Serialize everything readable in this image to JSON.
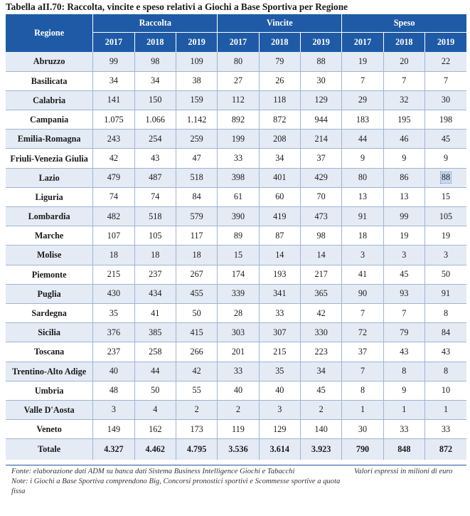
{
  "caption": "Tabella aII.70: Raccolta, vincite e speso relativi a Giochi a Base Sportiva per Regione",
  "headers": {
    "regione": "Regione",
    "groups": [
      "Raccolta",
      "Vincite",
      "Speso"
    ],
    "years": [
      "2017",
      "2018",
      "2019",
      "2017",
      "2018",
      "2019",
      "2017",
      "2018",
      "2019"
    ]
  },
  "rows": [
    {
      "regione": "Abruzzo",
      "values": [
        "99",
        "98",
        "109",
        "80",
        "79",
        "88",
        "19",
        "20",
        "22"
      ]
    },
    {
      "regione": "Basilicata",
      "values": [
        "34",
        "34",
        "38",
        "27",
        "26",
        "30",
        "7",
        "7",
        "7"
      ]
    },
    {
      "regione": "Calabria",
      "values": [
        "141",
        "150",
        "159",
        "112",
        "118",
        "129",
        "29",
        "32",
        "30"
      ]
    },
    {
      "regione": "Campania",
      "values": [
        "1.075",
        "1.066",
        "1.142",
        "892",
        "872",
        "944",
        "183",
        "195",
        "198"
      ]
    },
    {
      "regione": "Emilia-Romagna",
      "values": [
        "243",
        "254",
        "259",
        "199",
        "208",
        "214",
        "44",
        "46",
        "45"
      ]
    },
    {
      "regione": "Friuli-Venezia Giulia",
      "values": [
        "42",
        "43",
        "47",
        "33",
        "34",
        "37",
        "9",
        "9",
        "9"
      ]
    },
    {
      "regione": "Lazio",
      "values": [
        "479",
        "487",
        "518",
        "398",
        "401",
        "429",
        "80",
        "86",
        "88"
      ]
    },
    {
      "regione": "Liguria",
      "values": [
        "74",
        "74",
        "84",
        "61",
        "60",
        "70",
        "13",
        "13",
        "15"
      ]
    },
    {
      "regione": "Lombardia",
      "values": [
        "482",
        "518",
        "579",
        "390",
        "419",
        "473",
        "91",
        "99",
        "105"
      ]
    },
    {
      "regione": "Marche",
      "values": [
        "107",
        "105",
        "117",
        "89",
        "87",
        "98",
        "18",
        "19",
        "19"
      ]
    },
    {
      "regione": "Molise",
      "values": [
        "18",
        "18",
        "18",
        "15",
        "14",
        "14",
        "3",
        "3",
        "3"
      ]
    },
    {
      "regione": "Piemonte",
      "values": [
        "215",
        "237",
        "267",
        "174",
        "193",
        "217",
        "41",
        "45",
        "50"
      ]
    },
    {
      "regione": "Puglia",
      "values": [
        "430",
        "434",
        "455",
        "339",
        "341",
        "365",
        "90",
        "93",
        "91"
      ]
    },
    {
      "regione": "Sardegna",
      "values": [
        "35",
        "41",
        "50",
        "28",
        "33",
        "42",
        "7",
        "7",
        "8"
      ]
    },
    {
      "regione": "Sicilia",
      "values": [
        "376",
        "385",
        "415",
        "303",
        "307",
        "330",
        "72",
        "79",
        "84"
      ]
    },
    {
      "regione": "Toscana",
      "values": [
        "237",
        "258",
        "266",
        "201",
        "215",
        "223",
        "37",
        "43",
        "43"
      ]
    },
    {
      "regione": "Trentino-Alto Adige",
      "values": [
        "40",
        "44",
        "42",
        "33",
        "35",
        "34",
        "7",
        "8",
        "8"
      ]
    },
    {
      "regione": "Umbria",
      "values": [
        "48",
        "50",
        "55",
        "40",
        "40",
        "45",
        "8",
        "9",
        "10"
      ]
    },
    {
      "regione": "Valle D'Aosta",
      "values": [
        "3",
        "4",
        "2",
        "2",
        "3",
        "2",
        "1",
        "1",
        "1"
      ]
    },
    {
      "regione": "Veneto",
      "values": [
        "149",
        "162",
        "173",
        "119",
        "129",
        "140",
        "30",
        "33",
        "33"
      ]
    }
  ],
  "total": {
    "regione": "Totale",
    "values": [
      "4.327",
      "4.462",
      "4.795",
      "3.536",
      "3.614",
      "3.923",
      "790",
      "848",
      "872"
    ]
  },
  "notes": {
    "fonte": "Fonte: elaborazione dati ADM su banca dati Sistema Business Intelligence Giochi e Tabacchi",
    "note": "Note: i Giochi a Base Sportiva comprendono Big, Concorsi pronostici sportivi e Scommesse sportive a quota fissa",
    "unit": "Valori espressi in milioni di euro"
  },
  "colors": {
    "header": "#1f5aa6",
    "band": "#e4ebf5",
    "rule": "#9fb5d1"
  }
}
